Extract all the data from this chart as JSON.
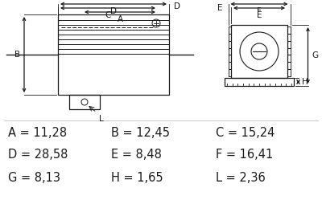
{
  "bg_color": "#ffffff",
  "line_color": "#1a1a1a",
  "measurements": [
    "A = 11,28",
    "B = 12,45",
    "C = 15,24",
    "D = 28,58",
    "E = 8,48",
    "F = 16,41",
    "G = 8,13",
    "H = 1,65",
    "L = 2,36"
  ],
  "text_fontsize": 10.5,
  "label_fontsize": 7.5
}
